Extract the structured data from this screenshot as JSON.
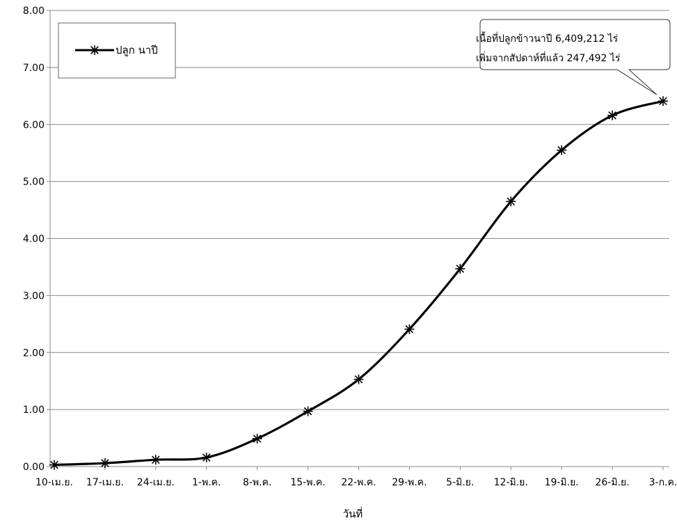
{
  "chart_data": {
    "type": "line",
    "categories": [
      "10-เม.ย.",
      "17-เม.ย.",
      "24-เม.ย.",
      "1-พ.ค.",
      "8-พ.ค.",
      "15-พ.ค.",
      "22-พ.ค.",
      "29-พ.ค.",
      "5-มิ.ย.",
      "12-มิ.ย.",
      "19-มิ.ย.",
      "26-มิ.ย.",
      "3-ก.ค."
    ],
    "series": [
      {
        "name": "ปลูก นาปี",
        "values": [
          0.03,
          0.06,
          0.12,
          0.16,
          0.49,
          0.97,
          1.53,
          2.41,
          3.47,
          4.65,
          5.55,
          6.16,
          6.41
        ],
        "color": "#000000",
        "marker": "asterisk"
      }
    ],
    "title": "",
    "xlabel": "วันที่",
    "ylabel": "",
    "ylim": [
      0,
      8
    ],
    "yticks": [
      "0.00",
      "1.00",
      "2.00",
      "3.00",
      "4.00",
      "5.00",
      "6.00",
      "7.00",
      "8.00"
    ],
    "grid": "horizontal",
    "legend_position": "top-left",
    "annotation": {
      "lines": [
        "เนื้อที่ปลูกข้าวนาปี 6,409,212 ไร่",
        "เพิ่มจากสัปดาห์ที่แล้ว 247,492 ไร่"
      ],
      "points_to": "3-ก.ค."
    }
  }
}
